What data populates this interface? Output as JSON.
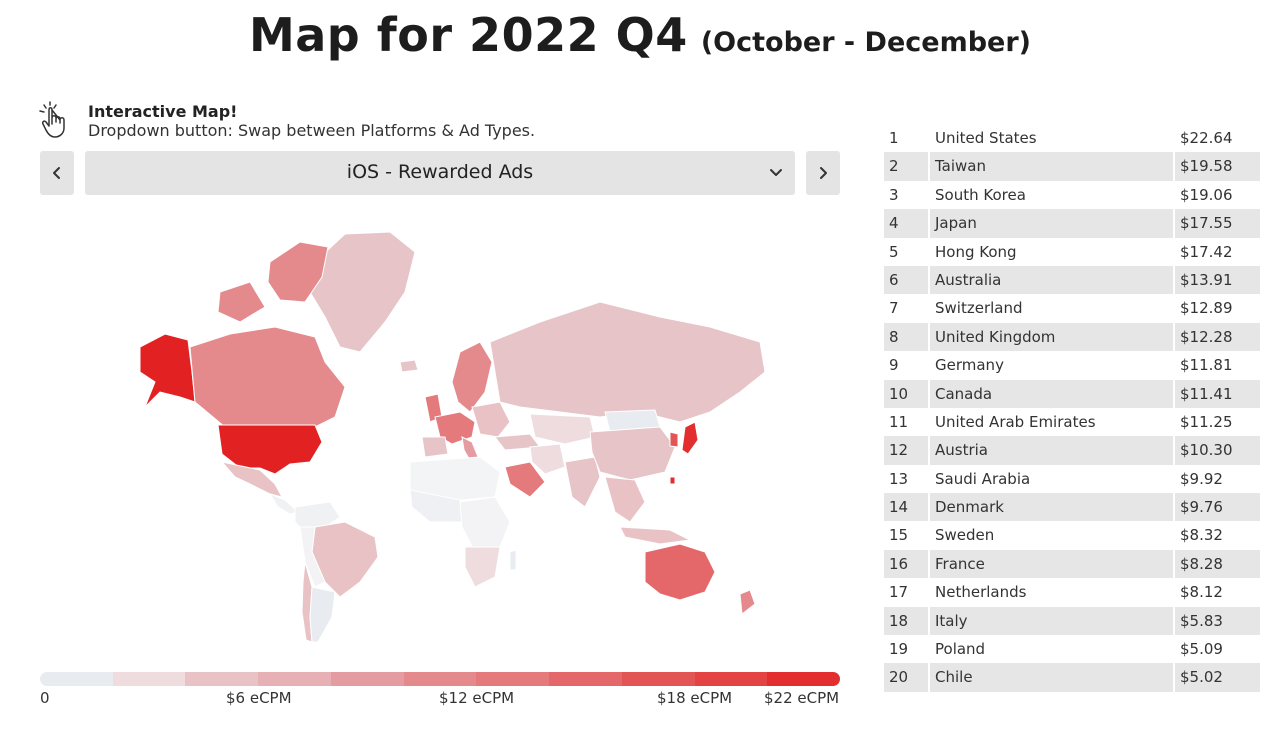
{
  "header": {
    "title": "Map for 2022 Q4",
    "subtitle": "(October - December)"
  },
  "hint": {
    "title": "Interactive Map!",
    "text": "Dropdown button: Swap between Platforms & Ad Types.",
    "icon": "hand-pointer-icon"
  },
  "dropdown": {
    "selected": "iOS - Rewarded Ads",
    "prev_icon": "chevron-left-icon",
    "next_icon": "chevron-right-icon",
    "toggle_icon": "chevron-down-icon"
  },
  "legend": {
    "labels": [
      "0",
      "$6 eCPM",
      "$12 eCPM",
      "$18 eCPM",
      "$22 eCPM"
    ],
    "colors": [
      "#e8ebf0",
      "#eedcdf",
      "#e9c2c6",
      "#e6b0b4",
      "#e59ca0",
      "#e48a8d",
      "#e47a7c",
      "#e4686a",
      "#e35555",
      "#e34343",
      "#e22e2e"
    ]
  },
  "ranking": [
    {
      "rank": "1",
      "country": "United States",
      "value": "$22.64"
    },
    {
      "rank": "2",
      "country": "Taiwan",
      "value": "$19.58"
    },
    {
      "rank": "3",
      "country": "South Korea",
      "value": "$19.06"
    },
    {
      "rank": "4",
      "country": "Japan",
      "value": "$17.55"
    },
    {
      "rank": "5",
      "country": "Hong Kong",
      "value": "$17.42"
    },
    {
      "rank": "6",
      "country": "Australia",
      "value": "$13.91"
    },
    {
      "rank": "7",
      "country": "Switzerland",
      "value": "$12.89"
    },
    {
      "rank": "8",
      "country": "United Kingdom",
      "value": "$12.28"
    },
    {
      "rank": "9",
      "country": "Germany",
      "value": "$11.81"
    },
    {
      "rank": "10",
      "country": "Canada",
      "value": "$11.41"
    },
    {
      "rank": "11",
      "country": "United Arab Emirates",
      "value": "$11.25"
    },
    {
      "rank": "12",
      "country": "Austria",
      "value": "$10.30"
    },
    {
      "rank": "13",
      "country": "Saudi Arabia",
      "value": "$9.92"
    },
    {
      "rank": "14",
      "country": "Denmark",
      "value": "$9.76"
    },
    {
      "rank": "15",
      "country": "Sweden",
      "value": "$8.32"
    },
    {
      "rank": "16",
      "country": "France",
      "value": "$8.28"
    },
    {
      "rank": "17",
      "country": "Netherlands",
      "value": "$8.12"
    },
    {
      "rank": "18",
      "country": "Italy",
      "value": "$5.83"
    },
    {
      "rank": "19",
      "country": "Poland",
      "value": "$5.09"
    },
    {
      "rank": "20",
      "country": "Chile",
      "value": "$5.02"
    }
  ]
}
